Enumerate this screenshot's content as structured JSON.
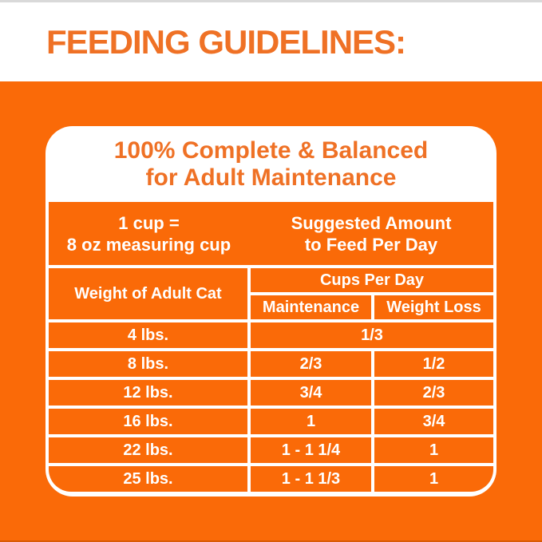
{
  "page_title": "FEEDING GUIDELINES:",
  "card": {
    "heading_line1": "100% Complete & Balanced",
    "heading_line2": "for Adult Maintenance",
    "intro": {
      "cup_equivalence_line1": "1 cup =",
      "cup_equivalence_line2": "8 oz measuring cup",
      "suggested_line1": "Suggested Amount",
      "suggested_line2": "to Feed Per Day"
    },
    "columns": {
      "weight": "Weight of Adult Cat",
      "cups_group": "Cups Per Day",
      "maintenance": "Maintenance",
      "weight_loss": "Weight Loss"
    },
    "rows": [
      {
        "weight": "4 lbs.",
        "maintenance": "1/3",
        "weight_loss": "",
        "spans_both_columns": true
      },
      {
        "weight": "8 lbs.",
        "maintenance": "2/3",
        "weight_loss": "1/2"
      },
      {
        "weight": "12 lbs.",
        "maintenance": "3/4",
        "weight_loss": "2/3"
      },
      {
        "weight": "16 lbs.",
        "maintenance": "1",
        "weight_loss": "3/4"
      },
      {
        "weight": "22 lbs.",
        "maintenance": "1 - 1 1/4",
        "weight_loss": "1"
      },
      {
        "weight": "25 lbs.",
        "maintenance": "1 - 1 1/3",
        "weight_loss": "1"
      }
    ]
  },
  "colors": {
    "background_orange": "#FA6A08",
    "heading_orange": "#EF7125",
    "cell_text": "#FFFFFF",
    "card_background": "#FFFFFF"
  }
}
